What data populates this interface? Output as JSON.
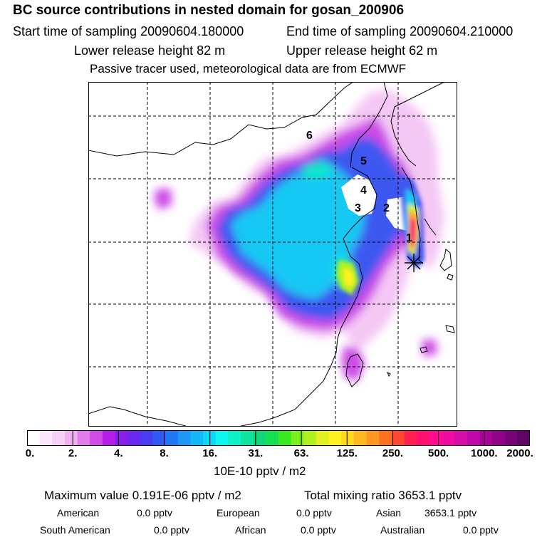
{
  "header": {
    "title": "BC  source contributions in nested domain for gosan_200906",
    "start": "Start time of sampling 20090604.180000",
    "end": "End time of sampling 20090604.210000",
    "lower": "Lower release height   82 m",
    "upper": "Upper release height   62 m",
    "note": "Passive tracer used, meteorological data are from ECMWF"
  },
  "map": {
    "labels": [
      "6",
      "5",
      "4",
      "3",
      "2",
      "1"
    ],
    "receptor_icon": "star-asterisk-icon"
  },
  "colorbar": {
    "ticks": [
      "0.",
      "2.",
      "4.",
      "8.",
      "16.",
      "31.",
      "63.",
      "125.",
      "250.",
      "500.",
      "1000.",
      "2000."
    ],
    "units": "10E-10 pptv / m2",
    "colors": [
      "#ffffff",
      "#fbe6fb",
      "#f6cff6",
      "#f0b0f0",
      "#e27ce8",
      "#d04be8",
      "#b41ee8",
      "#8a1ee8",
      "#6a28f0",
      "#4a3cf2",
      "#2f5af4",
      "#1e78f6",
      "#1e98f6",
      "#14b8f8",
      "#0ed8f8",
      "#0ef4ee",
      "#10f0c8",
      "#10e4a0",
      "#10d878",
      "#14e050",
      "#38ea20",
      "#7af020",
      "#b0f020",
      "#e0f020",
      "#fff020",
      "#ffd820",
      "#ffb820",
      "#ff9820",
      "#ff7020",
      "#ff4830",
      "#ff2050",
      "#ff1070",
      "#ff0c90",
      "#f00ca0",
      "#d80ca8",
      "#c008a8",
      "#a80698",
      "#900488",
      "#780478",
      "#600468"
    ]
  },
  "stats": {
    "max": "Maximum value  0.191E-06 pptv / m2",
    "total": "Total mixing ratio     3653.1 pptv",
    "regions": [
      {
        "name": "American",
        "value": "0.0 pptv"
      },
      {
        "name": "European",
        "value": "0.0 pptv"
      },
      {
        "name": "Asian",
        "value": "3653.1 pptv"
      },
      {
        "name": "South American",
        "value": "0.0 pptv"
      },
      {
        "name": "African",
        "value": "0.0 pptv"
      },
      {
        "name": "Australian",
        "value": "0.0 pptv"
      }
    ]
  }
}
